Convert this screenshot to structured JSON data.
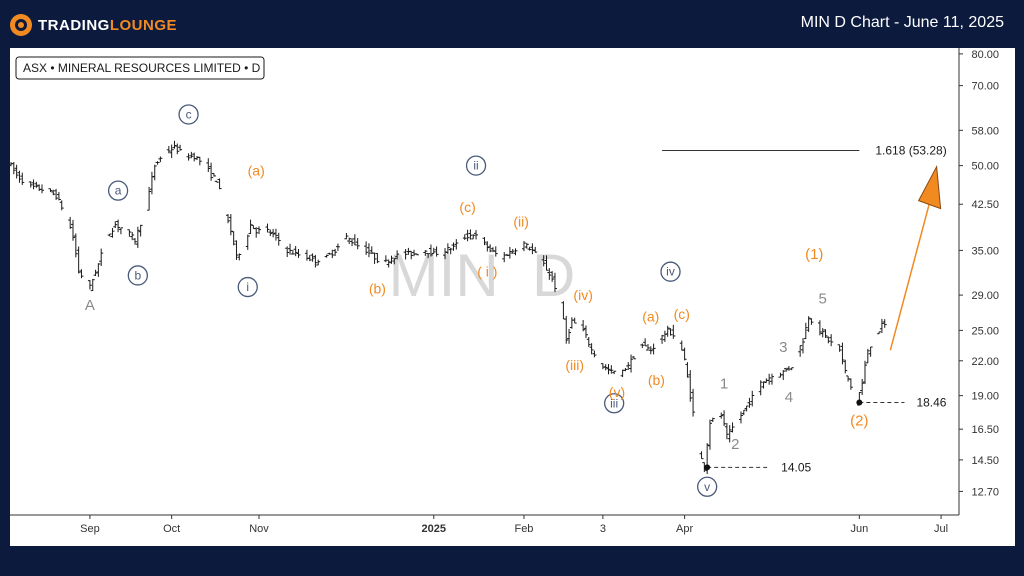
{
  "header": {
    "logo_text_a": "TRADING",
    "logo_text_b": "LOUNGE",
    "title": "MIN D Chart - June 11, 2025"
  },
  "chart_data": {
    "type": "ohlc",
    "symbol_label": "ASX • MINERAL RESOURCES LIMITED • D",
    "watermark": "MIN  D",
    "scale": "log",
    "ylim": [
      11.5,
      82
    ],
    "y_ticks": [
      "80.00",
      "70.00",
      "58.00",
      "50.00",
      "42.50",
      "35.00",
      "29.00",
      "25.00",
      "22.00",
      "19.00",
      "16.50",
      "14.50",
      "12.70"
    ],
    "x_labels": [
      {
        "label": "Sep",
        "date": "2024-09-02",
        "bold": false
      },
      {
        "label": "Oct",
        "date": "2024-10-01",
        "bold": false
      },
      {
        "label": "Nov",
        "date": "2024-11-01",
        "bold": false
      },
      {
        "label": "2025",
        "date": "2025-01-02",
        "bold": true
      },
      {
        "label": "Feb",
        "date": "2025-02-03",
        "bold": false
      },
      {
        "label": "3",
        "date": "2025-03-03",
        "bold": false
      },
      {
        "label": "Apr",
        "date": "2025-04-01",
        "bold": false
      },
      {
        "label": "Jun",
        "date": "2025-06-02",
        "bold": false
      },
      {
        "label": "Jul",
        "date": "2025-07-01",
        "bold": false
      }
    ],
    "price_path": [
      [
        "2024-08-05",
        51
      ],
      [
        "2024-08-08",
        48
      ],
      [
        "2024-08-12",
        46
      ],
      [
        "2024-08-15",
        45.5
      ],
      [
        "2024-08-19",
        45
      ],
      [
        "2024-08-22",
        44
      ],
      [
        "2024-08-26",
        40
      ],
      [
        "2024-08-28",
        37
      ],
      [
        "2024-08-30",
        32
      ],
      [
        "2024-09-03",
        30
      ],
      [
        "2024-09-06",
        33
      ],
      [
        "2024-09-09",
        37
      ],
      [
        "2024-09-12",
        39
      ],
      [
        "2024-09-16",
        38
      ],
      [
        "2024-09-19",
        36.5
      ],
      [
        "2024-09-23",
        42
      ],
      [
        "2024-09-26",
        50
      ],
      [
        "2024-09-30",
        53
      ],
      [
        "2024-10-03",
        54
      ],
      [
        "2024-10-07",
        52
      ],
      [
        "2024-10-10",
        52
      ],
      [
        "2024-10-14",
        50
      ],
      [
        "2024-10-16",
        48
      ],
      [
        "2024-10-18",
        47
      ],
      [
        "2024-10-21",
        41
      ],
      [
        "2024-10-23",
        38
      ],
      [
        "2024-10-25",
        34
      ],
      [
        "2024-10-28",
        36
      ],
      [
        "2024-10-30",
        39
      ],
      [
        "2024-11-01",
        38
      ],
      [
        "2024-11-05",
        38
      ],
      [
        "2024-11-08",
        37
      ],
      [
        "2024-11-12",
        35
      ],
      [
        "2024-11-15",
        34.5
      ],
      [
        "2024-11-19",
        34
      ],
      [
        "2024-11-22",
        33.5
      ],
      [
        "2024-11-26",
        34
      ],
      [
        "2024-11-29",
        35
      ],
      [
        "2024-12-03",
        37
      ],
      [
        "2024-12-06",
        36
      ],
      [
        "2024-12-10",
        35
      ],
      [
        "2024-12-13",
        34
      ],
      [
        "2024-12-16",
        33
      ],
      [
        "2024-12-19",
        34
      ],
      [
        "2024-12-23",
        34.5
      ],
      [
        "2024-12-27",
        34.5
      ],
      [
        "2024-12-31",
        35
      ],
      [
        "2025-01-03",
        34.5
      ],
      [
        "2025-01-07",
        35
      ],
      [
        "2025-01-10",
        35.5
      ],
      [
        "2025-01-14",
        37
      ],
      [
        "2025-01-17",
        37.5
      ],
      [
        "2025-01-21",
        36
      ],
      [
        "2025-01-23",
        35
      ],
      [
        "2025-01-27",
        34
      ],
      [
        "2025-01-29",
        34.5
      ],
      [
        "2025-01-31",
        35
      ],
      [
        "2025-02-04",
        36
      ],
      [
        "2025-02-07",
        35
      ],
      [
        "2025-02-11",
        33
      ],
      [
        "2025-02-14",
        31
      ],
      [
        "2025-02-17",
        28
      ],
      [
        "2025-02-19",
        24
      ],
      [
        "2025-02-21",
        26
      ],
      [
        "2025-02-25",
        25
      ],
      [
        "2025-02-28",
        23
      ],
      [
        "2025-03-04",
        21.5
      ],
      [
        "2025-03-07",
        21
      ],
      [
        "2025-03-11",
        21
      ],
      [
        "2025-03-14",
        22
      ],
      [
        "2025-03-18",
        23.5
      ],
      [
        "2025-03-21",
        23
      ],
      [
        "2025-03-24",
        24
      ],
      [
        "2025-03-27",
        25
      ],
      [
        "2025-03-31",
        24
      ],
      [
        "2025-04-02",
        22
      ],
      [
        "2025-04-04",
        19
      ],
      [
        "2025-04-07",
        15
      ],
      [
        "2025-04-09",
        14.05
      ],
      [
        "2025-04-11",
        17
      ],
      [
        "2025-04-15",
        17.5
      ],
      [
        "2025-04-17",
        16
      ],
      [
        "2025-04-22",
        17.5
      ],
      [
        "2025-04-25",
        18.5
      ],
      [
        "2025-04-29",
        20
      ],
      [
        "2025-05-02",
        20.5
      ],
      [
        "2025-05-07",
        21
      ],
      [
        "2025-05-10",
        21.5
      ],
      [
        "2025-05-14",
        24
      ],
      [
        "2025-05-16",
        26.5
      ],
      [
        "2025-05-20",
        25
      ],
      [
        "2025-05-23",
        24
      ],
      [
        "2025-05-27",
        23
      ],
      [
        "2025-05-29",
        21
      ],
      [
        "2025-06-02",
        18.46
      ],
      [
        "2025-06-04",
        20
      ],
      [
        "2025-06-06",
        23
      ],
      [
        "2025-06-11",
        25.5
      ]
    ],
    "levels": [
      {
        "label": "1.618 (53.28)",
        "value": 53.28,
        "from": "2025-03-24",
        "to": "2025-06-02",
        "style": "solid"
      },
      {
        "label": "18.46",
        "value": 18.46,
        "from": "2025-06-02",
        "to": "2025-06-18",
        "style": "dashed"
      },
      {
        "label": "14.05",
        "value": 14.05,
        "from": "2025-04-09",
        "to": "2025-05-01",
        "style": "dashed"
      }
    ],
    "projection_arrow": {
      "from": [
        "2025-06-13",
        23
      ],
      "to": [
        "2025-06-28",
        45
      ]
    },
    "annotations": [
      {
        "text": "A",
        "date": "2024-09-02",
        "price": 27.8,
        "color": "#8a8a8a",
        "circle": false,
        "size": 15
      },
      {
        "text": "c",
        "date": "2024-10-07",
        "price": 62,
        "color": "#4a5a7a",
        "circle": true,
        "size": 12
      },
      {
        "text": "a",
        "date": "2024-09-12",
        "price": 45,
        "color": "#4a5a7a",
        "circle": true,
        "size": 12
      },
      {
        "text": "b",
        "date": "2024-09-19",
        "price": 31.5,
        "color": "#4a5a7a",
        "circle": true,
        "size": 12
      },
      {
        "text": "i",
        "date": "2024-10-28",
        "price": 30,
        "color": "#4a5a7a",
        "circle": true,
        "size": 12
      },
      {
        "text": "ii",
        "date": "2025-01-17",
        "price": 50,
        "color": "#4a5a7a",
        "circle": true,
        "size": 12
      },
      {
        "text": "iii",
        "date": "2025-03-07",
        "price": 18.4,
        "color": "#4a5a7a",
        "circle": true,
        "size": 12
      },
      {
        "text": "iv",
        "date": "2025-03-27",
        "price": 32,
        "color": "#4a5a7a",
        "circle": true,
        "size": 12
      },
      {
        "text": "v",
        "date": "2025-04-09",
        "price": 12.95,
        "color": "#4a5a7a",
        "circle": true,
        "size": 12
      },
      {
        "text": "(a)",
        "date": "2024-10-31",
        "price": 49,
        "color": "#f18a21",
        "circle": false,
        "size": 14
      },
      {
        "text": "(b)",
        "date": "2024-12-13",
        "price": 29.8,
        "color": "#f18a21",
        "circle": false,
        "size": 14
      },
      {
        "text": "(c)",
        "date": "2025-01-14",
        "price": 42,
        "color": "#f18a21",
        "circle": false,
        "size": 14
      },
      {
        "text": "( i )",
        "date": "2025-01-21",
        "price": 32,
        "color": "#f18a21",
        "circle": false,
        "size": 14
      },
      {
        "text": "(ii)",
        "date": "2025-02-02",
        "price": 39.5,
        "color": "#f18a21",
        "circle": false,
        "size": 14
      },
      {
        "text": "(iv)",
        "date": "2025-02-24",
        "price": 29,
        "color": "#f18a21",
        "circle": false,
        "size": 14
      },
      {
        "text": "(iii)",
        "date": "2025-02-21",
        "price": 21.6,
        "color": "#f18a21",
        "circle": false,
        "size": 14
      },
      {
        "text": "(v)",
        "date": "2025-03-08",
        "price": 19.3,
        "color": "#f18a21",
        "circle": false,
        "size": 14
      },
      {
        "text": "(a)",
        "date": "2025-03-20",
        "price": 26.5,
        "color": "#f18a21",
        "circle": false,
        "size": 14
      },
      {
        "text": "(b)",
        "date": "2025-03-22",
        "price": 20.3,
        "color": "#f18a21",
        "circle": false,
        "size": 14
      },
      {
        "text": "(c)",
        "date": "2025-03-31",
        "price": 26.8,
        "color": "#f18a21",
        "circle": false,
        "size": 14
      },
      {
        "text": "(1)",
        "date": "2025-05-17",
        "price": 34.5,
        "color": "#f18a21",
        "circle": false,
        "size": 15
      },
      {
        "text": "(2)",
        "date": "2025-06-02",
        "price": 17.1,
        "color": "#f18a21",
        "circle": false,
        "size": 15
      },
      {
        "text": "1",
        "date": "2025-04-15",
        "price": 20,
        "color": "#8a8a8a",
        "circle": false,
        "size": 15
      },
      {
        "text": "2",
        "date": "2025-04-19",
        "price": 15.5,
        "color": "#8a8a8a",
        "circle": false,
        "size": 15
      },
      {
        "text": "3",
        "date": "2025-05-06",
        "price": 23.3,
        "color": "#8a8a8a",
        "circle": false,
        "size": 15
      },
      {
        "text": "4",
        "date": "2025-05-08",
        "price": 18.9,
        "color": "#8a8a8a",
        "circle": false,
        "size": 15
      },
      {
        "text": "5",
        "date": "2025-05-20",
        "price": 28.6,
        "color": "#8a8a8a",
        "circle": false,
        "size": 15
      }
    ],
    "colors": {
      "bar": "#1a1a1a",
      "orange": "#f18a21",
      "navy": "#0c1a3e",
      "wave_gray": "#8a8a8a",
      "circle_label": "#4a5a7a"
    }
  }
}
